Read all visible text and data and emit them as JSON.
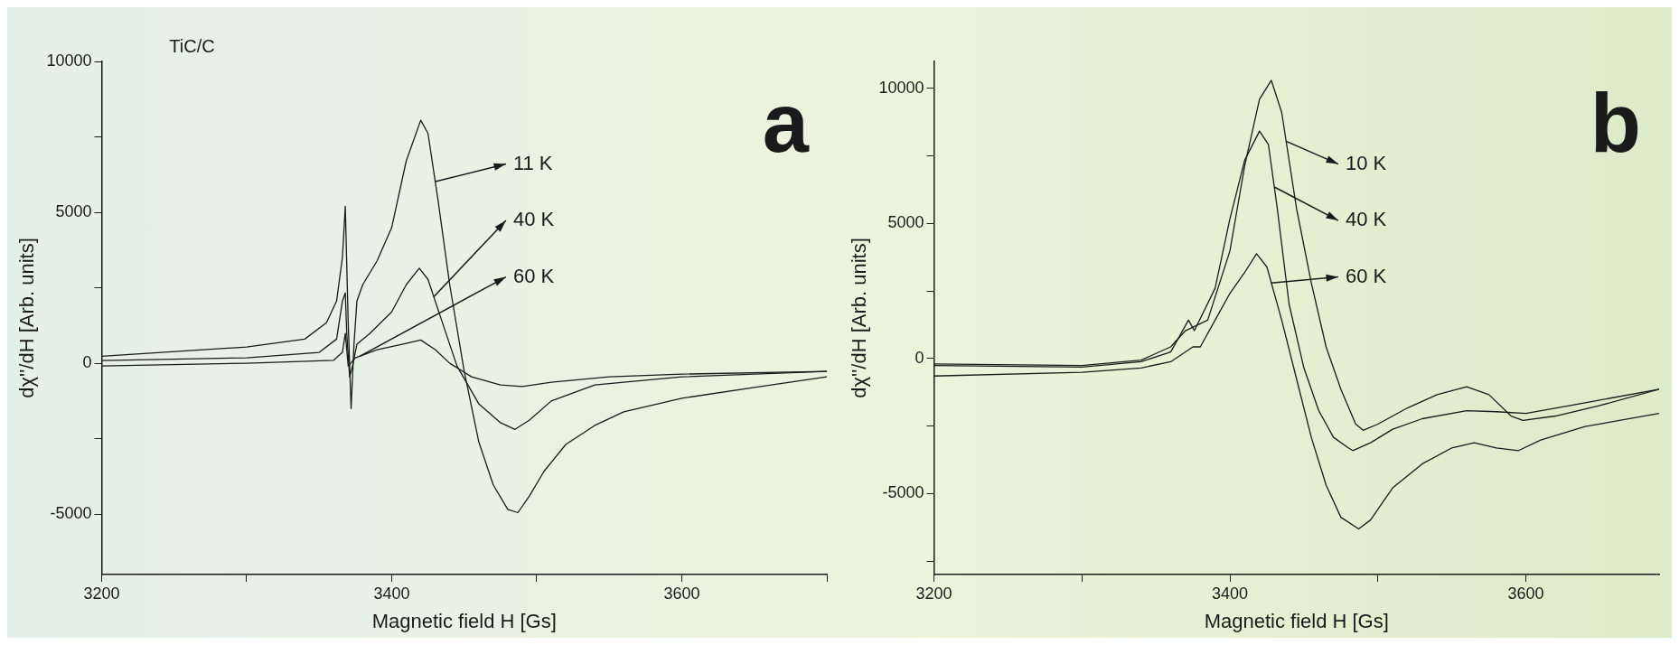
{
  "chart_data": [
    {
      "type": "line",
      "title": "TiC/C",
      "annotations": [
        "a"
      ],
      "xlabel": "Magnetic field H [Gs]",
      "ylabel": "dχ''/dH [Arb. units]",
      "xlim": [
        3200,
        3700
      ],
      "xticks": [
        3200,
        {
          "value": 3300,
          "label": null
        },
        3400,
        {
          "value": 3500,
          "label": null
        },
        3600,
        {
          "value": 3700,
          "label": null
        }
      ],
      "ylim": [
        -7000,
        10000
      ],
      "yticks": [
        -5000,
        {
          "value": -2500,
          "label": null
        },
        0,
        {
          "value": 2500,
          "label": null
        },
        5000,
        {
          "value": 7500,
          "label": null
        },
        10000
      ],
      "grid": false,
      "legend": "top",
      "marker": "none",
      "line_style": "solid",
      "series": [
        {
          "name": "11 K",
          "color": "#1a1a1a",
          "x": [
            3200,
            3300,
            3340,
            3355,
            3362,
            3366,
            3368,
            3370,
            3372,
            3374,
            3376,
            3380,
            3390,
            3400,
            3410,
            3420,
            3425,
            3432,
            3440,
            3450,
            3460,
            3470,
            3480,
            3487,
            3495,
            3505,
            3520,
            3540,
            3560,
            3600,
            3650,
            3700
          ],
          "values": [
            230,
            540,
            800,
            1340,
            2060,
            3500,
            5200,
            1340,
            -1500,
            630,
            2060,
            2600,
            3400,
            4500,
            6700,
            8050,
            7620,
            5380,
            2600,
            -270,
            -2600,
            -4030,
            -4840,
            -4950,
            -4390,
            -3580,
            -2690,
            -2060,
            -1610,
            -1160,
            -800,
            -450
          ]
        },
        {
          "name": "40 K",
          "color": "#1a1a1a",
          "x": [
            3200,
            3300,
            3350,
            3362,
            3366,
            3368,
            3369,
            3371,
            3373,
            3376,
            3385,
            3400,
            3410,
            3419,
            3425,
            3435,
            3445,
            3460,
            3475,
            3485,
            3495,
            3510,
            3540,
            3600,
            3700
          ],
          "values": [
            90,
            180,
            360,
            800,
            2060,
            2330,
            990,
            -450,
            -90,
            630,
            990,
            1700,
            2600,
            3150,
            2780,
            1340,
            -90,
            -1340,
            -1970,
            -2190,
            -1880,
            -1250,
            -720,
            -450,
            -270
          ]
        },
        {
          "name": "60 K",
          "color": "#1a1a1a",
          "x": [
            3200,
            3300,
            3360,
            3366,
            3368,
            3370,
            3375,
            3390,
            3410,
            3420,
            3430,
            3440,
            3455,
            3475,
            3490,
            3510,
            3550,
            3600,
            3700
          ],
          "values": [
            -90,
            0,
            100,
            360,
            990,
            -90,
            180,
            450,
            660,
            770,
            450,
            0,
            -450,
            -720,
            -770,
            -630,
            -450,
            -360,
            -270
          ]
        }
      ]
    },
    {
      "type": "line",
      "annotations": [
        "b"
      ],
      "xlabel": "Magnetic field H [Gs]",
      "ylabel": "dχ''/dH [Arb. units]",
      "xlim": [
        3200,
        3690
      ],
      "xticks": [
        3200,
        {
          "value": 3300,
          "label": null
        },
        3400,
        {
          "value": 3500,
          "label": null
        },
        3600
      ],
      "ylim": [
        -8000,
        11000
      ],
      "yticks": [
        {
          "value": -7500,
          "label": null
        },
        -5000,
        {
          "value": -2500,
          "label": null
        },
        0,
        {
          "value": 2500,
          "label": null
        },
        5000,
        {
          "value": 7500,
          "label": null
        },
        10000
      ],
      "grid": false,
      "legend": "top",
      "marker": "none",
      "line_style": "solid",
      "series": [
        {
          "name": "10 K",
          "color": "#1a1a1a",
          "x": [
            3200,
            3300,
            3340,
            3360,
            3370,
            3385,
            3400,
            3410,
            3420,
            3428,
            3435,
            3445,
            3455,
            3465,
            3475,
            3485,
            3490,
            3500,
            3520,
            3540,
            3560,
            3575,
            3590,
            3598,
            3620,
            3650,
            3690
          ],
          "values": [
            -200,
            -260,
            -60,
            430,
            1030,
            1420,
            3980,
            7140,
            9600,
            10300,
            9110,
            5560,
            2800,
            430,
            -1140,
            -2430,
            -2660,
            -2430,
            -1830,
            -1340,
            -1050,
            -1340,
            -2130,
            -2290,
            -2130,
            -1740,
            -1140
          ]
        },
        {
          "name": "40 K",
          "color": "#1a1a1a",
          "x": [
            3200,
            3300,
            3340,
            3360,
            3372,
            3376,
            3390,
            3400,
            3410,
            3420,
            3426,
            3432,
            3440,
            3450,
            3460,
            3470,
            3480,
            3483,
            3495,
            3510,
            3530,
            3560,
            3580,
            3600,
            3630,
            3690
          ],
          "values": [
            -260,
            -320,
            -120,
            240,
            1420,
            1030,
            2600,
            5170,
            7340,
            8420,
            7930,
            5560,
            2010,
            -350,
            -1930,
            -2920,
            -3310,
            -3410,
            -3120,
            -2620,
            -2230,
            -1930,
            -1970,
            -2030,
            -1740,
            -1140
          ]
        },
        {
          "name": "60 K",
          "color": "#1a1a1a",
          "x": [
            3200,
            3300,
            3340,
            3360,
            3375,
            3380,
            3390,
            3400,
            3410,
            3418,
            3425,
            3435,
            3445,
            3455,
            3465,
            3475,
            3487,
            3495,
            3510,
            3530,
            3550,
            3565,
            3580,
            3595,
            3610,
            3640,
            3690
          ],
          "values": [
            -650,
            -510,
            -350,
            -120,
            430,
            430,
            1420,
            2410,
            3190,
            3880,
            3390,
            1420,
            -750,
            -2920,
            -4690,
            -5880,
            -6310,
            -5980,
            -4790,
            -3900,
            -3310,
            -3120,
            -3310,
            -3410,
            -3020,
            -2520,
            -2030
          ]
        }
      ]
    }
  ]
}
